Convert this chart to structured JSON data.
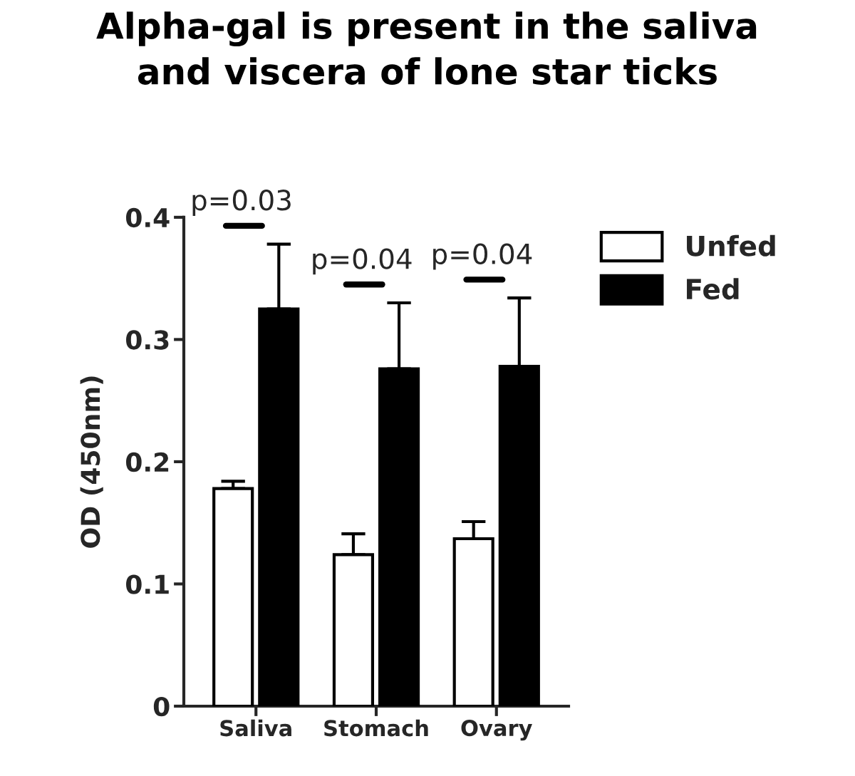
{
  "chart_data": {
    "type": "bar",
    "title": "Alpha-gal is present in the saliva\nand viscera of lone star ticks",
    "ylabel": "OD (450nm)",
    "categories": [
      "Saliva",
      "Stomach",
      "Ovary"
    ],
    "series": [
      {
        "name": "Unfed",
        "color": "#ffffff",
        "values": [
          0.178,
          0.124,
          0.137
        ],
        "errors": [
          [
            0.178,
            0.184
          ],
          [
            0.124,
            0.141
          ],
          [
            0.137,
            0.151
          ]
        ]
      },
      {
        "name": "Fed",
        "color": "#000000",
        "values": [
          0.325,
          0.276,
          0.278
        ],
        "errors": [
          [
            0.325,
            0.378
          ],
          [
            0.276,
            0.33
          ],
          [
            0.278,
            0.334
          ]
        ]
      }
    ],
    "ylim": [
      0,
      0.4
    ],
    "yticks": [
      0,
      0.1,
      0.2,
      0.3,
      0.4
    ],
    "grid": false,
    "legend": "top right",
    "annotations": [
      "p=0.03",
      "p=0.04",
      "p=0.04"
    ]
  }
}
